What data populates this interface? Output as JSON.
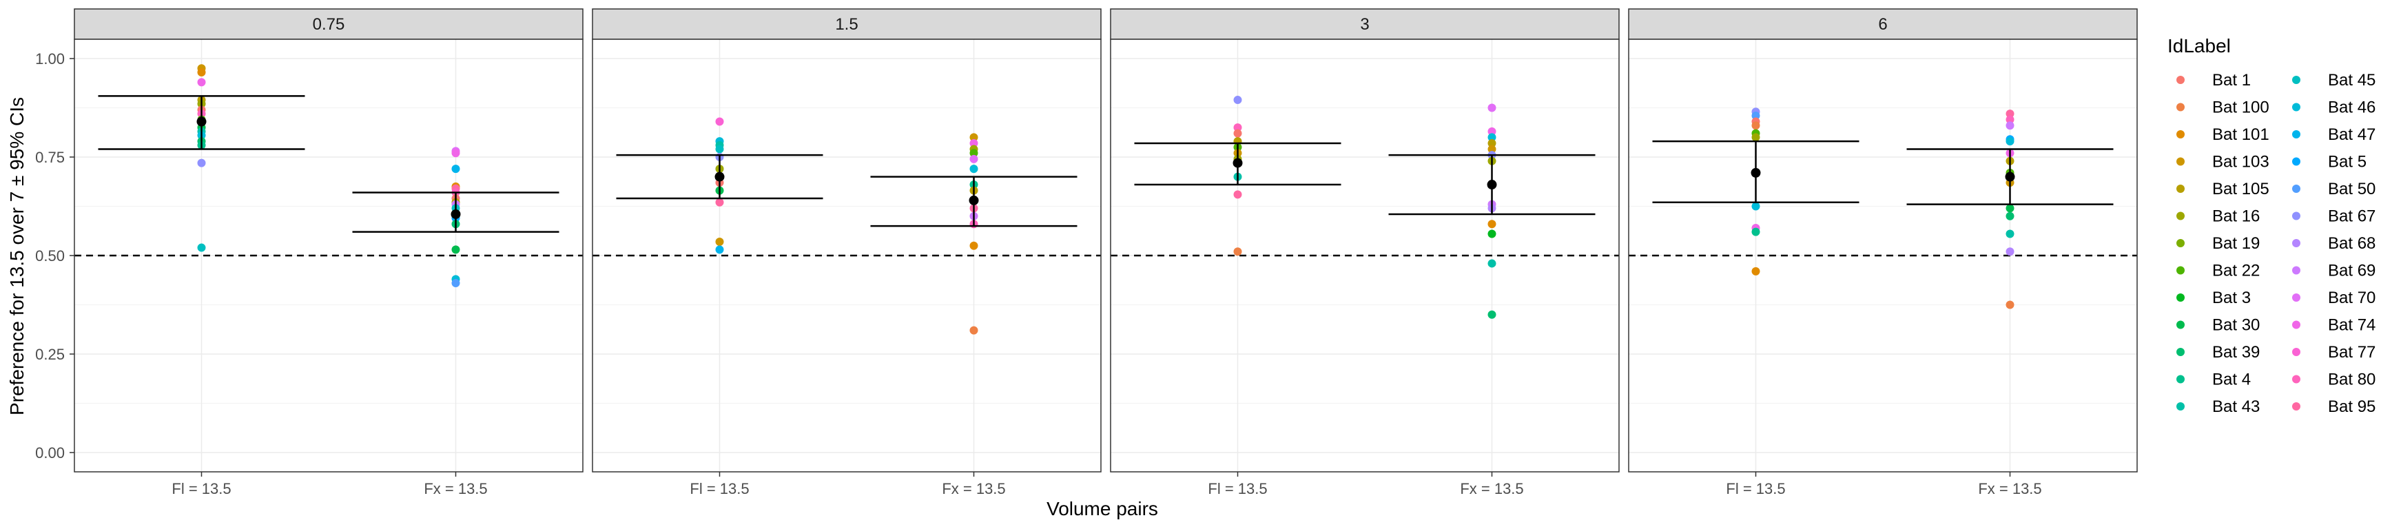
{
  "chart_data": {
    "type": "scatter",
    "facet_variable": "volume",
    "facets": [
      "0.75",
      "1.5",
      "3",
      "6"
    ],
    "categories": [
      "Fl = 13.5",
      "Fx = 13.5"
    ],
    "xlabel": "Volume pairs",
    "ylabel": "Preference for 13.5 over 7 ± 95% CIs",
    "ylim": [
      0,
      1
    ],
    "yticks": [
      "0.00",
      "0.25",
      "0.50",
      "0.75",
      "1.00"
    ],
    "reference_line": {
      "y": 0.5,
      "style": "dashed"
    },
    "grid": true,
    "legend": {
      "title": "IdLabel",
      "placement": "right",
      "items": [
        {
          "label": "Bat 1",
          "color": "#F8766D"
        },
        {
          "label": "Bat 100",
          "color": "#EE8044"
        },
        {
          "label": "Bat 101",
          "color": "#E08B00"
        },
        {
          "label": "Bat 103",
          "color": "#CD9600"
        },
        {
          "label": "Bat 105",
          "color": "#B79F00"
        },
        {
          "label": "Bat 16",
          "color": "#9DA700"
        },
        {
          "label": "Bat 19",
          "color": "#7CAE00"
        },
        {
          "label": "Bat 22",
          "color": "#4EB400"
        },
        {
          "label": "Bat 3",
          "color": "#00B81F"
        },
        {
          "label": "Bat 30",
          "color": "#00BB4E"
        },
        {
          "label": "Bat 39",
          "color": "#00BE70"
        },
        {
          "label": "Bat 4",
          "color": "#00C08D"
        },
        {
          "label": "Bat 43",
          "color": "#00C0A8"
        },
        {
          "label": "Bat 45",
          "color": "#00BFC1"
        },
        {
          "label": "Bat 46",
          "color": "#00BBD8"
        },
        {
          "label": "Bat 47",
          "color": "#00B4EC"
        },
        {
          "label": "Bat 5",
          "color": "#00A9FF"
        },
        {
          "label": "Bat 50",
          "color": "#529EFF"
        },
        {
          "label": "Bat 67",
          "color": "#8F91FF"
        },
        {
          "label": "Bat 68",
          "color": "#B385FF"
        },
        {
          "label": "Bat 69",
          "color": "#CD79FF"
        },
        {
          "label": "Bat 70",
          "color": "#E26EF7"
        },
        {
          "label": "Bat 74",
          "color": "#F066E8"
        },
        {
          "label": "Bat 77",
          "color": "#FA62D4"
        },
        {
          "label": "Bat 80",
          "color": "#FF63BC"
        },
        {
          "label": "Bat 95",
          "color": "#FF67A2"
        }
      ]
    },
    "panels": [
      {
        "facet": "0.75",
        "groups": [
          {
            "category": "Fl = 13.5",
            "mean": 0.84,
            "ci_lower": 0.77,
            "ci_upper": 0.905,
            "points": [
              {
                "id": "Bat 103",
                "y": 0.975
              },
              {
                "id": "Bat 101",
                "y": 0.965
              },
              {
                "id": "Bat 74",
                "y": 0.94
              },
              {
                "id": "Bat 105",
                "y": 0.895
              },
              {
                "id": "Bat 16",
                "y": 0.885
              },
              {
                "id": "Bat 1",
                "y": 0.87
              },
              {
                "id": "Bat 80",
                "y": 0.86
              },
              {
                "id": "Bat 22",
                "y": 0.845
              },
              {
                "id": "Bat 30",
                "y": 0.825
              },
              {
                "id": "Bat 43",
                "y": 0.815
              },
              {
                "id": "Bat 46",
                "y": 0.805
              },
              {
                "id": "Bat 39",
                "y": 0.79
              },
              {
                "id": "Bat 4",
                "y": 0.78
              },
              {
                "id": "Bat 67",
                "y": 0.735
              },
              {
                "id": "Bat 45",
                "y": 0.52
              }
            ]
          },
          {
            "category": "Fx = 13.5",
            "mean": 0.605,
            "ci_lower": 0.56,
            "ci_upper": 0.66,
            "points": [
              {
                "id": "Bat 70",
                "y": 0.765
              },
              {
                "id": "Bat 74",
                "y": 0.76
              },
              {
                "id": "Bat 47",
                "y": 0.72
              },
              {
                "id": "Bat 101",
                "y": 0.675
              },
              {
                "id": "Bat 95",
                "y": 0.67
              },
              {
                "id": "Bat 80",
                "y": 0.66
              },
              {
                "id": "Bat 1",
                "y": 0.645
              },
              {
                "id": "Bat 105",
                "y": 0.635
              },
              {
                "id": "Bat 69",
                "y": 0.63
              },
              {
                "id": "Bat 45",
                "y": 0.62
              },
              {
                "id": "Bat 5",
                "y": 0.595
              },
              {
                "id": "Bat 39",
                "y": 0.58
              },
              {
                "id": "Bat 30",
                "y": 0.515
              },
              {
                "id": "Bat 46",
                "y": 0.44
              },
              {
                "id": "Bat 50",
                "y": 0.43
              }
            ]
          }
        ]
      },
      {
        "facet": "1.5",
        "groups": [
          {
            "category": "Fl = 13.5",
            "mean": 0.7,
            "ci_lower": 0.645,
            "ci_upper": 0.755,
            "points": [
              {
                "id": "Bat 77",
                "y": 0.84
              },
              {
                "id": "Bat 46",
                "y": 0.79
              },
              {
                "id": "Bat 43",
                "y": 0.78
              },
              {
                "id": "Bat 45",
                "y": 0.77
              },
              {
                "id": "Bat 67",
                "y": 0.75
              },
              {
                "id": "Bat 16",
                "y": 0.72
              },
              {
                "id": "Bat 80",
                "y": 0.7
              },
              {
                "id": "Bat 1",
                "y": 0.685
              },
              {
                "id": "Bat 30",
                "y": 0.665
              },
              {
                "id": "Bat 95",
                "y": 0.635
              },
              {
                "id": "Bat 103",
                "y": 0.535
              },
              {
                "id": "Bat 47",
                "y": 0.515
              }
            ]
          },
          {
            "category": "Fx = 13.5",
            "mean": 0.64,
            "ci_lower": 0.575,
            "ci_upper": 0.7,
            "points": [
              {
                "id": "Bat 103",
                "y": 0.8
              },
              {
                "id": "Bat 74",
                "y": 0.785
              },
              {
                "id": "Bat 16",
                "y": 0.77
              },
              {
                "id": "Bat 22",
                "y": 0.76
              },
              {
                "id": "Bat 70",
                "y": 0.745
              },
              {
                "id": "Bat 46",
                "y": 0.72
              },
              {
                "id": "Bat 4",
                "y": 0.68
              },
              {
                "id": "Bat 105",
                "y": 0.665
              },
              {
                "id": "Bat 95",
                "y": 0.62
              },
              {
                "id": "Bat 69",
                "y": 0.6
              },
              {
                "id": "Bat 80",
                "y": 0.58
              },
              {
                "id": "Bat 101",
                "y": 0.525
              },
              {
                "id": "Bat 100",
                "y": 0.31
              }
            ]
          }
        ]
      },
      {
        "facet": "3",
        "groups": [
          {
            "category": "Fl = 13.5",
            "mean": 0.735,
            "ci_lower": 0.68,
            "ci_upper": 0.785,
            "points": [
              {
                "id": "Bat 67",
                "y": 0.895
              },
              {
                "id": "Bat 80",
                "y": 0.825
              },
              {
                "id": "Bat 1",
                "y": 0.81
              },
              {
                "id": "Bat 105",
                "y": 0.79
              },
              {
                "id": "Bat 22",
                "y": 0.775
              },
              {
                "id": "Bat 103",
                "y": 0.76
              },
              {
                "id": "Bat 16",
                "y": 0.745
              },
              {
                "id": "Bat 43",
                "y": 0.7
              },
              {
                "id": "Bat 95",
                "y": 0.655
              },
              {
                "id": "Bat 100",
                "y": 0.51
              }
            ]
          },
          {
            "category": "Fx = 13.5",
            "mean": 0.68,
            "ci_lower": 0.605,
            "ci_upper": 0.755,
            "points": [
              {
                "id": "Bat 70",
                "y": 0.875
              },
              {
                "id": "Bat 74",
                "y": 0.815
              },
              {
                "id": "Bat 46",
                "y": 0.8
              },
              {
                "id": "Bat 105",
                "y": 0.785
              },
              {
                "id": "Bat 103",
                "y": 0.77
              },
              {
                "id": "Bat 67",
                "y": 0.755
              },
              {
                "id": "Bat 16",
                "y": 0.74
              },
              {
                "id": "Bat 69",
                "y": 0.63
              },
              {
                "id": "Bat 68",
                "y": 0.62
              },
              {
                "id": "Bat 101",
                "y": 0.58
              },
              {
                "id": "Bat 3",
                "y": 0.555
              },
              {
                "id": "Bat 43",
                "y": 0.48
              },
              {
                "id": "Bat 39",
                "y": 0.35
              }
            ]
          }
        ]
      },
      {
        "facet": "6",
        "groups": [
          {
            "category": "Fl = 13.5",
            "mean": 0.71,
            "ci_lower": 0.635,
            "ci_upper": 0.79,
            "points": [
              {
                "id": "Bat 67",
                "y": 0.865
              },
              {
                "id": "Bat 50",
                "y": 0.855
              },
              {
                "id": "Bat 1",
                "y": 0.84
              },
              {
                "id": "Bat 100",
                "y": 0.83
              },
              {
                "id": "Bat 22",
                "y": 0.81
              },
              {
                "id": "Bat 16",
                "y": 0.8
              },
              {
                "id": "Bat 46",
                "y": 0.625
              },
              {
                "id": "Bat 74",
                "y": 0.57
              },
              {
                "id": "Bat 4",
                "y": 0.56
              },
              {
                "id": "Bat 101",
                "y": 0.46
              }
            ]
          },
          {
            "category": "Fx = 13.5",
            "mean": 0.7,
            "ci_lower": 0.63,
            "ci_upper": 0.77,
            "points": [
              {
                "id": "Bat 95",
                "y": 0.86
              },
              {
                "id": "Bat 80",
                "y": 0.845
              },
              {
                "id": "Bat 69",
                "y": 0.83
              },
              {
                "id": "Bat 5",
                "y": 0.795
              },
              {
                "id": "Bat 46",
                "y": 0.79
              },
              {
                "id": "Bat 74",
                "y": 0.76
              },
              {
                "id": "Bat 105",
                "y": 0.74
              },
              {
                "id": "Bat 22",
                "y": 0.71
              },
              {
                "id": "Bat 1",
                "y": 0.7
              },
              {
                "id": "Bat 103",
                "y": 0.685
              },
              {
                "id": "Bat 30",
                "y": 0.62
              },
              {
                "id": "Bat 39",
                "y": 0.6
              },
              {
                "id": "Bat 43",
                "y": 0.555
              },
              {
                "id": "Bat 68",
                "y": 0.51
              },
              {
                "id": "Bat 100",
                "y": 0.375
              }
            ]
          }
        ]
      }
    ]
  }
}
